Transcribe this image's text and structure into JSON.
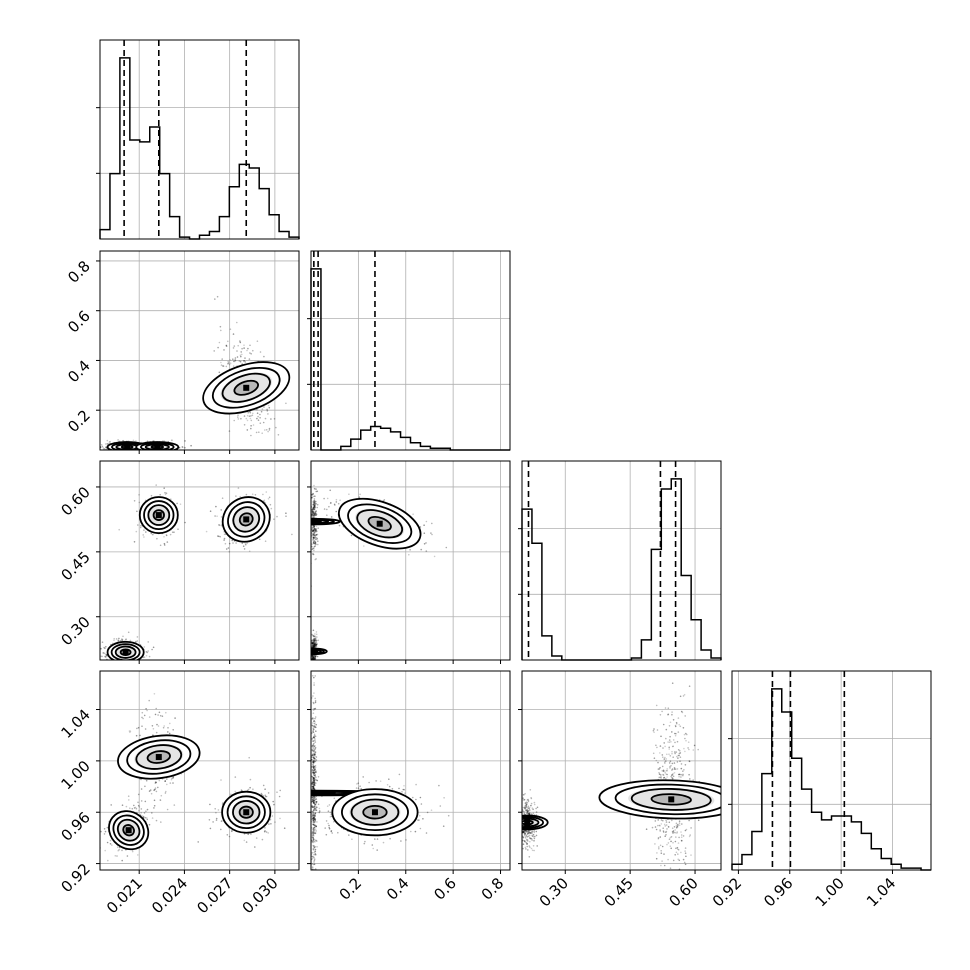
{
  "chart_data": {
    "type": "corner",
    "grid": true,
    "parameters": [
      {
        "range": [
          0.0184,
          0.0316
        ],
        "ticks": [
          "0.021",
          "0.024",
          "0.027",
          "0.030"
        ],
        "quantiles": [
          0.02,
          0.0223,
          0.0281
        ],
        "hist": {
          "edges": [
            0.0184,
            0.01906,
            0.01972,
            0.02038,
            0.02104,
            0.0217,
            0.02236,
            0.02302,
            0.02368,
            0.02434,
            0.025,
            0.02566,
            0.02632,
            0.02698,
            0.02764,
            0.0283,
            0.02896,
            0.02962,
            0.03028,
            0.03094,
            0.0316
          ],
          "counts": [
            0.05,
            0.35,
            0.97,
            0.53,
            0.52,
            0.6,
            0.35,
            0.12,
            0.01,
            0,
            0.02,
            0.04,
            0.12,
            0.28,
            0.4,
            0.38,
            0.27,
            0.13,
            0.04,
            0.01
          ]
        }
      },
      {
        "range": [
          0.0,
          0.84
        ],
        "ticks": [
          "0.2",
          "0.4",
          "0.6",
          "0.8"
        ],
        "quantiles": [
          0.012,
          0.03,
          0.27
        ],
        "hist": {
          "edges": [
            0.0,
            0.042,
            0.084,
            0.126,
            0.168,
            0.21,
            0.252,
            0.294,
            0.336,
            0.378,
            0.42,
            0.462,
            0.504,
            0.546,
            0.588,
            0.63,
            0.672,
            0.714,
            0.756,
            0.798,
            0.84
          ],
          "counts": [
            1.0,
            0.0,
            0.0,
            0.02,
            0.06,
            0.11,
            0.13,
            0.12,
            0.1,
            0.07,
            0.04,
            0.02,
            0.01,
            0.01,
            0,
            0,
            0,
            0,
            0,
            0
          ]
        }
      },
      {
        "range": [
          0.2,
          0.66
        ],
        "ticks": [
          "0.30",
          "0.45",
          "0.60"
        ],
        "quantiles": [
          0.215,
          0.52,
          0.555
        ],
        "hist": {
          "edges": [
            0.2,
            0.223,
            0.246,
            0.269,
            0.292,
            0.315,
            0.338,
            0.361,
            0.384,
            0.407,
            0.43,
            0.453,
            0.476,
            0.499,
            0.522,
            0.545,
            0.568,
            0.591,
            0.614,
            0.637,
            0.66
          ],
          "counts": [
            0.75,
            0.58,
            0.12,
            0.02,
            0.0,
            0.0,
            0.0,
            0.0,
            0.0,
            0.0,
            0.0,
            0.01,
            0.1,
            0.55,
            0.85,
            0.9,
            0.42,
            0.2,
            0.05,
            0.01
          ]
        }
      },
      {
        "range": [
          0.915,
          1.07
        ],
        "ticks": [
          "0.92",
          "0.96",
          "1.00",
          "1.04"
        ],
        "quantiles": [
          0.9465,
          0.9605,
          1.0025
        ],
        "hist": {
          "edges": [
            0.915,
            0.92275,
            0.9305,
            0.93825,
            0.946,
            0.95375,
            0.9615,
            0.96925,
            0.977,
            0.98475,
            0.9925,
            1.00025,
            1.008,
            1.01575,
            1.0235,
            1.03125,
            1.039,
            1.04675,
            1.0545,
            1.06225,
            1.07
          ],
          "counts": [
            0.03,
            0.08,
            0.2,
            0.5,
            0.94,
            0.82,
            0.58,
            0.42,
            0.3,
            0.26,
            0.28,
            0.28,
            0.25,
            0.19,
            0.11,
            0.06,
            0.03,
            0.01,
            0.01,
            0.0
          ]
        }
      }
    ],
    "pairs": [
      {
        "row": 1,
        "col": 0,
        "ylim": [
          0.04,
          0.84
        ],
        "yticks": [
          "0.2",
          "0.4",
          "0.6",
          "0.8"
        ],
        "clusters": [
          {
            "mean": [
              0.0202,
              0.052
            ],
            "sd": [
              0.00065,
              0.01
            ],
            "w": 0.45,
            "rho": 0.0
          },
          {
            "mean": [
              0.0222,
              0.052
            ],
            "sd": [
              0.0007,
              0.01
            ],
            "w": 0.2,
            "rho": 0.0
          },
          {
            "mean": [
              0.0281,
              0.29
            ],
            "sd": [
              0.00075,
              0.09
            ],
            "w": 0.35,
            "rho": -0.55
          }
        ]
      },
      {
        "row": 2,
        "col": 0,
        "ylim": [
          0.2,
          0.66
        ],
        "yticks": [
          "0.30",
          "0.45",
          "0.60"
        ],
        "clusters": [
          {
            "mean": [
              0.0201,
              0.218
            ],
            "sd": [
              0.0006,
              0.012
            ],
            "w": 0.4,
            "rho": 0.0
          },
          {
            "mean": [
              0.0223,
              0.535
            ],
            "sd": [
              0.0006,
              0.022
            ],
            "w": 0.25,
            "rho": 0.0
          },
          {
            "mean": [
              0.0281,
              0.525
            ],
            "sd": [
              0.0008,
              0.025
            ],
            "w": 0.35,
            "rho": 0.2
          }
        ]
      },
      {
        "row": 2,
        "col": 1,
        "ylim": [
          0.2,
          0.66
        ],
        "yticks": [
          "0.30",
          "0.45",
          "0.60"
        ],
        "clusters": [
          {
            "mean": [
              0.012,
              0.52
            ],
            "sd": [
              0.006,
              0.03
            ],
            "w": 0.3,
            "rho": 0.0
          },
          {
            "mean": [
              0.012,
              0.22
            ],
            "sd": [
              0.006,
              0.015
            ],
            "w": 0.35,
            "rho": 0.0
          },
          {
            "mean": [
              0.29,
              0.515
            ],
            "sd": [
              0.09,
              0.025
            ],
            "w": 0.35,
            "rho": -0.6
          }
        ]
      },
      {
        "row": 3,
        "col": 0,
        "ylim": [
          0.915,
          1.07
        ],
        "yticks": [
          "0.92",
          "0.96",
          "1.00",
          "1.04"
        ],
        "clusters": [
          {
            "mean": [
              0.0203,
              0.946
            ],
            "sd": [
              0.0006,
              0.008
            ],
            "w": 0.4,
            "rho": 0.5
          },
          {
            "mean": [
              0.0223,
              1.003
            ],
            "sd": [
              0.0007,
              0.016
            ],
            "w": 0.25,
            "rho": -0.2
          },
          {
            "mean": [
              0.0281,
              0.96
            ],
            "sd": [
              0.0008,
              0.008
            ],
            "w": 0.35,
            "rho": 0.0
          }
        ]
      },
      {
        "row": 3,
        "col": 1,
        "ylim": [
          0.915,
          1.07
        ],
        "yticks": [
          "0.92",
          "0.96",
          "1.00",
          "1.04"
        ],
        "clusters": [
          {
            "mean": [
              0.012,
              0.975
            ],
            "sd": [
              0.005,
              0.03
            ],
            "w": 0.55,
            "rho": 0.0
          },
          {
            "mean": [
              0.27,
              0.96
            ],
            "sd": [
              0.09,
              0.009
            ],
            "w": 0.45,
            "rho": 0.0
          }
        ]
      },
      {
        "row": 3,
        "col": 2,
        "ylim": [
          0.915,
          1.07
        ],
        "yticks": [
          "0.92",
          "0.96",
          "1.00",
          "1.04"
        ],
        "clusters": [
          {
            "mean": [
              0.212,
              0.952
            ],
            "sd": [
              0.008,
              0.008
            ],
            "w": 0.45,
            "rho": 0.0
          },
          {
            "mean": [
              0.545,
              0.97
            ],
            "sd": [
              0.022,
              0.028
            ],
            "w": 0.55,
            "rho": 0.1
          }
        ]
      }
    ]
  }
}
